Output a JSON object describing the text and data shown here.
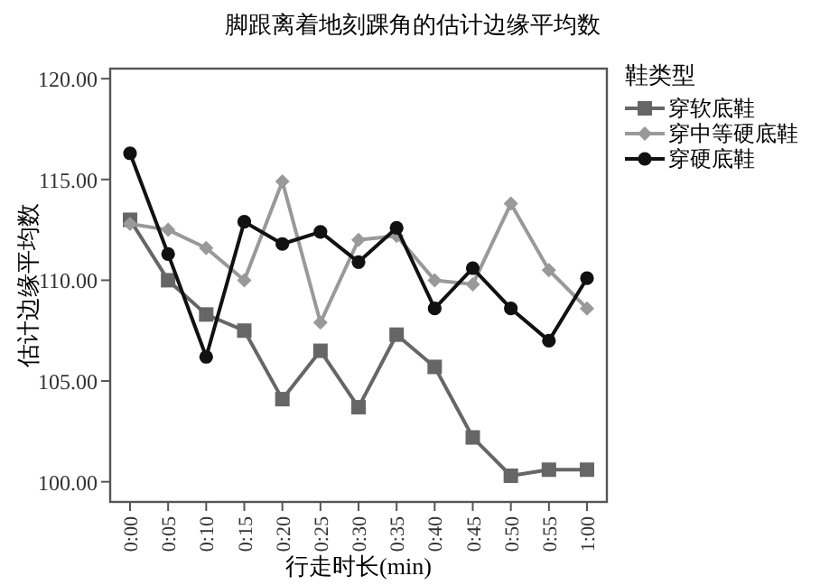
{
  "chart_data": {
    "type": "line",
    "title": "脚跟离着地刻踝角的估计边缘平均数",
    "xlabel": "行走时长(min)",
    "ylabel": "估计边缘平均数",
    "legend_title": "鞋类型",
    "legend": "right",
    "categories": [
      "0:00",
      "0:05",
      "0:10",
      "0:15",
      "0:20",
      "0:25",
      "0:30",
      "0:35",
      "0:40",
      "0:45",
      "0:50",
      "0:55",
      "1:00"
    ],
    "ylim": [
      99,
      120.5
    ],
    "yticks": [
      {
        "value": 100,
        "label": "100.00"
      },
      {
        "value": 105,
        "label": "105.00"
      },
      {
        "value": 110,
        "label": "110.00"
      },
      {
        "value": 115,
        "label": "115.00"
      },
      {
        "value": 120,
        "label": "120.00"
      }
    ],
    "series": [
      {
        "name": "穿软底鞋",
        "color": "#666666",
        "marker": "square",
        "values": [
          113.0,
          110.0,
          108.3,
          107.5,
          104.1,
          106.5,
          103.7,
          107.3,
          105.7,
          102.2,
          100.3,
          100.6,
          100.6
        ]
      },
      {
        "name": "穿中等硬底鞋",
        "color": "#999999",
        "marker": "diamond",
        "values": [
          112.8,
          112.5,
          111.6,
          110.0,
          114.9,
          107.9,
          112.0,
          112.2,
          110.0,
          109.8,
          113.8,
          110.5,
          108.6
        ]
      },
      {
        "name": "穿硬底鞋",
        "color": "#111111",
        "marker": "circle",
        "values": [
          116.3,
          111.3,
          106.2,
          112.9,
          111.8,
          112.4,
          110.9,
          112.6,
          108.6,
          110.6,
          108.6,
          107.0,
          110.1
        ]
      }
    ]
  }
}
